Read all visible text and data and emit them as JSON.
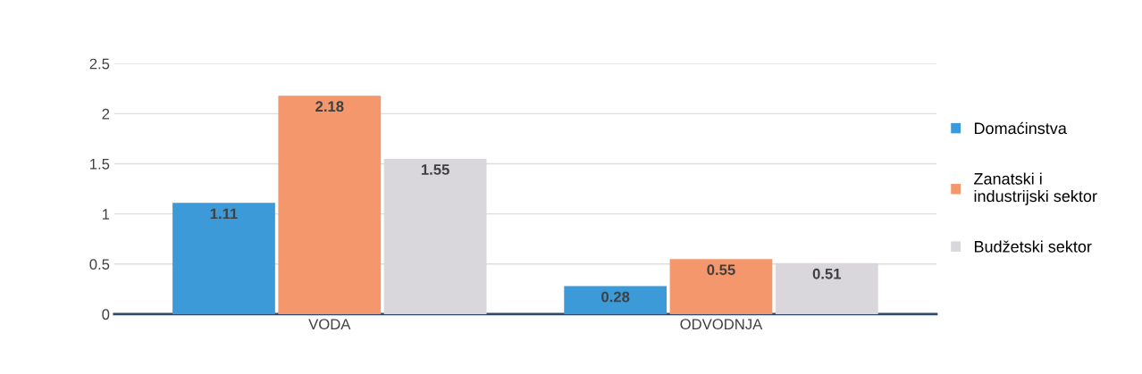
{
  "chart_data": {
    "type": "bar",
    "categories": [
      "VODA",
      "ODVODNJA"
    ],
    "series": [
      {
        "name": "Domaćinstva",
        "color": "#3d9ad8",
        "values": [
          1.11,
          0.28
        ]
      },
      {
        "name": "Zanatski i\nindustrijski sektor",
        "color": "#f4976c",
        "values": [
          2.18,
          0.55
        ]
      },
      {
        "name": "Budžetski sektor",
        "color": "#d9d6dc",
        "values": [
          1.55,
          0.51
        ]
      }
    ],
    "ylim": [
      0,
      2.5
    ],
    "yticks": [
      0,
      0.5,
      1,
      1.5,
      2,
      2.5
    ],
    "grid": "y",
    "legend": "right",
    "data_labels": true
  }
}
